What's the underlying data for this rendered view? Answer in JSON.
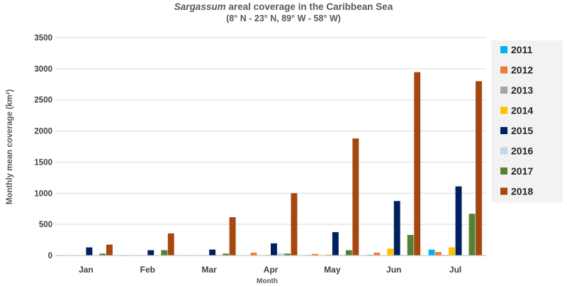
{
  "chart_data": {
    "type": "bar",
    "title_italic": "Sargassum",
    "title_rest": " areal coverage in the Caribbean Sea",
    "subtitle": "(8° N - 23° N, 89° W - 58° W)",
    "xlabel": "Month",
    "ylabel": "Monthly mean coverage (km²)",
    "ylim": [
      0,
      3500
    ],
    "yticks": [
      0,
      500,
      1000,
      1500,
      2000,
      2500,
      3000,
      3500
    ],
    "grid": true,
    "legend_position": "right",
    "categories": [
      "Jan",
      "Feb",
      "Mar",
      "Apr",
      "May",
      "Jun",
      "Jul"
    ],
    "series": [
      {
        "name": "2011",
        "color": "#00b0f0",
        "values": [
          2,
          2,
          3,
          5,
          8,
          10,
          95
        ]
      },
      {
        "name": "2012",
        "color": "#ed7d31",
        "values": [
          5,
          5,
          5,
          45,
          25,
          45,
          55
        ]
      },
      {
        "name": "2013",
        "color": "#a5a5a5",
        "values": [
          3,
          3,
          3,
          5,
          5,
          5,
          10
        ]
      },
      {
        "name": "2014",
        "color": "#ffc000",
        "values": [
          2,
          2,
          2,
          10,
          15,
          110,
          130
        ]
      },
      {
        "name": "2015",
        "color": "#002060",
        "values": [
          130,
          85,
          95,
          195,
          375,
          875,
          1110
        ]
      },
      {
        "name": "2016",
        "color": "#bdd7ee",
        "values": [
          5,
          5,
          10,
          35,
          10,
          10,
          5
        ]
      },
      {
        "name": "2017",
        "color": "#548235",
        "values": [
          30,
          85,
          30,
          30,
          85,
          330,
          670
        ]
      },
      {
        "name": "2018",
        "color": "#a5470e",
        "values": [
          175,
          355,
          615,
          1000,
          1880,
          2945,
          2800
        ]
      }
    ]
  }
}
